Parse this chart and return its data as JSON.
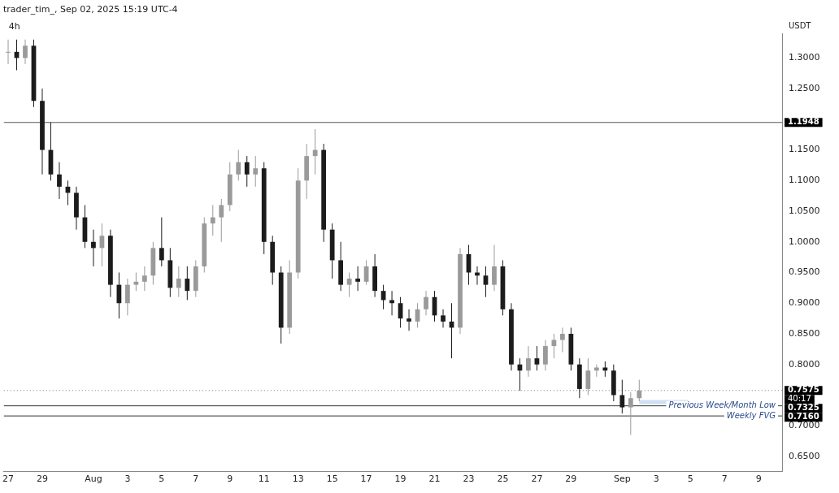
{
  "chart_data": {
    "type": "candlestick",
    "title": "trader_tim_, Sep 02, 2025 15:19 UTC-4",
    "ylabel": "USDT",
    "x": [
      "2025-07-27T00:00",
      "2025-07-27T12:00",
      "2025-07-28T00:00",
      "2025-07-28T12:00",
      "2025-07-29T00:00",
      "2025-07-29T12:00",
      "2025-07-30T00:00",
      "2025-07-30T12:00",
      "2025-07-31T00:00",
      "2025-07-31T12:00",
      "2025-08-01T00:00",
      "2025-08-01T12:00",
      "2025-08-02T00:00",
      "2025-08-02T12:00",
      "2025-08-03T00:00",
      "2025-08-03T12:00",
      "2025-08-04T00:00",
      "2025-08-04T12:00",
      "2025-08-05T00:00",
      "2025-08-05T12:00",
      "2025-08-06T00:00",
      "2025-08-06T12:00",
      "2025-08-07T00:00",
      "2025-08-07T12:00",
      "2025-08-08T00:00",
      "2025-08-08T12:00",
      "2025-08-09T00:00",
      "2025-08-09T12:00",
      "2025-08-10T00:00",
      "2025-08-10T12:00",
      "2025-08-11T00:00",
      "2025-08-11T12:00",
      "2025-08-12T00:00",
      "2025-08-12T12:00",
      "2025-08-13T00:00",
      "2025-08-13T12:00",
      "2025-08-14T00:00",
      "2025-08-14T12:00",
      "2025-08-15T00:00",
      "2025-08-15T12:00",
      "2025-08-16T00:00",
      "2025-08-16T12:00",
      "2025-08-17T00:00",
      "2025-08-17T12:00",
      "2025-08-18T00:00",
      "2025-08-18T12:00",
      "2025-08-19T00:00",
      "2025-08-19T12:00",
      "2025-08-20T00:00",
      "2025-08-20T12:00",
      "2025-08-21T00:00",
      "2025-08-21T12:00",
      "2025-08-22T00:00",
      "2025-08-22T12:00",
      "2025-08-23T00:00",
      "2025-08-23T12:00",
      "2025-08-24T00:00",
      "2025-08-24T12:00",
      "2025-08-25T00:00",
      "2025-08-25T12:00",
      "2025-08-26T00:00",
      "2025-08-26T12:00",
      "2025-08-27T00:00",
      "2025-08-27T12:00",
      "2025-08-28T00:00",
      "2025-08-28T12:00",
      "2025-08-29T00:00",
      "2025-08-29T12:00",
      "2025-08-30T00:00",
      "2025-08-30T12:00",
      "2025-08-31T00:00",
      "2025-08-31T12:00",
      "2025-09-01T00:00",
      "2025-09-01T12:00",
      "2025-09-02T00:00"
    ],
    "ohlc": [
      [
        1.31,
        1.33,
        1.29,
        1.31
      ],
      [
        1.31,
        1.33,
        1.28,
        1.3
      ],
      [
        1.3,
        1.33,
        1.29,
        1.32
      ],
      [
        1.32,
        1.33,
        1.22,
        1.23
      ],
      [
        1.23,
        1.25,
        1.11,
        1.15
      ],
      [
        1.15,
        1.1948,
        1.1,
        1.11
      ],
      [
        1.11,
        1.13,
        1.07,
        1.09
      ],
      [
        1.09,
        1.1,
        1.06,
        1.08
      ],
      [
        1.08,
        1.09,
        1.02,
        1.04
      ],
      [
        1.04,
        1.06,
        0.99,
        1.0
      ],
      [
        1.0,
        1.02,
        0.96,
        0.99
      ],
      [
        0.99,
        1.03,
        0.96,
        1.01
      ],
      [
        1.01,
        1.02,
        0.91,
        0.93
      ],
      [
        0.93,
        0.95,
        0.875,
        0.9
      ],
      [
        0.9,
        0.94,
        0.88,
        0.93
      ],
      [
        0.93,
        0.95,
        0.92,
        0.935
      ],
      [
        0.935,
        0.96,
        0.92,
        0.945
      ],
      [
        0.945,
        1.0,
        0.93,
        0.99
      ],
      [
        0.99,
        1.04,
        0.96,
        0.97
      ],
      [
        0.97,
        0.99,
        0.91,
        0.925
      ],
      [
        0.925,
        0.96,
        0.91,
        0.94
      ],
      [
        0.94,
        0.96,
        0.905,
        0.92
      ],
      [
        0.92,
        0.97,
        0.91,
        0.96
      ],
      [
        0.96,
        1.04,
        0.95,
        1.03
      ],
      [
        1.03,
        1.06,
        1.01,
        1.04
      ],
      [
        1.04,
        1.07,
        1.0,
        1.06
      ],
      [
        1.06,
        1.13,
        1.05,
        1.11
      ],
      [
        1.11,
        1.15,
        1.1,
        1.13
      ],
      [
        1.13,
        1.14,
        1.09,
        1.11
      ],
      [
        1.11,
        1.14,
        1.09,
        1.12
      ],
      [
        1.12,
        1.13,
        0.98,
        1.0
      ],
      [
        1.0,
        1.01,
        0.93,
        0.95
      ],
      [
        0.95,
        0.96,
        0.834,
        0.86
      ],
      [
        0.86,
        0.97,
        0.85,
        0.95
      ],
      [
        0.95,
        1.12,
        0.94,
        1.1
      ],
      [
        1.1,
        1.16,
        1.07,
        1.14
      ],
      [
        1.14,
        1.184,
        1.11,
        1.15
      ],
      [
        1.15,
        1.16,
        1.0,
        1.02
      ],
      [
        1.02,
        1.03,
        0.94,
        0.97
      ],
      [
        0.97,
        1.0,
        0.92,
        0.93
      ],
      [
        0.93,
        0.95,
        0.91,
        0.94
      ],
      [
        0.94,
        0.96,
        0.92,
        0.935
      ],
      [
        0.935,
        0.97,
        0.93,
        0.96
      ],
      [
        0.96,
        0.98,
        0.91,
        0.92
      ],
      [
        0.92,
        0.93,
        0.89,
        0.905
      ],
      [
        0.905,
        0.92,
        0.88,
        0.9
      ],
      [
        0.9,
        0.91,
        0.86,
        0.875
      ],
      [
        0.875,
        0.89,
        0.855,
        0.87
      ],
      [
        0.87,
        0.9,
        0.86,
        0.89
      ],
      [
        0.89,
        0.92,
        0.88,
        0.91
      ],
      [
        0.91,
        0.92,
        0.87,
        0.88
      ],
      [
        0.88,
        0.89,
        0.86,
        0.87
      ],
      [
        0.87,
        0.9,
        0.81,
        0.86
      ],
      [
        0.86,
        0.99,
        0.85,
        0.98
      ],
      [
        0.98,
        0.995,
        0.93,
        0.95
      ],
      [
        0.95,
        0.96,
        0.93,
        0.945
      ],
      [
        0.945,
        0.96,
        0.91,
        0.93
      ],
      [
        0.93,
        0.995,
        0.92,
        0.96
      ],
      [
        0.96,
        0.97,
        0.88,
        0.89
      ],
      [
        0.89,
        0.9,
        0.79,
        0.8
      ],
      [
        0.8,
        0.81,
        0.757,
        0.79
      ],
      [
        0.79,
        0.83,
        0.78,
        0.81
      ],
      [
        0.81,
        0.83,
        0.79,
        0.8
      ],
      [
        0.8,
        0.84,
        0.79,
        0.83
      ],
      [
        0.83,
        0.85,
        0.81,
        0.84
      ],
      [
        0.84,
        0.86,
        0.82,
        0.85
      ],
      [
        0.85,
        0.86,
        0.79,
        0.8
      ],
      [
        0.8,
        0.81,
        0.745,
        0.76
      ],
      [
        0.76,
        0.81,
        0.75,
        0.79
      ],
      [
        0.79,
        0.8,
        0.78,
        0.795
      ],
      [
        0.795,
        0.805,
        0.78,
        0.79
      ],
      [
        0.79,
        0.8,
        0.74,
        0.75
      ],
      [
        0.75,
        0.775,
        0.72,
        0.73
      ],
      [
        0.73,
        0.755,
        0.685,
        0.745
      ],
      [
        0.745,
        0.775,
        0.74,
        0.7575
      ]
    ],
    "colors": [
      "#9a9a9a",
      "#1c1c1c",
      "#9a9a9a",
      "#1c1c1c",
      "#1c1c1c",
      "#1c1c1c",
      "#1c1c1c",
      "#1c1c1c",
      "#1c1c1c",
      "#1c1c1c",
      "#1c1c1c",
      "#9a9a9a",
      "#1c1c1c",
      "#1c1c1c",
      "#9a9a9a",
      "#9a9a9a",
      "#9a9a9a",
      "#9a9a9a",
      "#1c1c1c",
      "#1c1c1c",
      "#9a9a9a",
      "#1c1c1c",
      "#9a9a9a",
      "#9a9a9a",
      "#9a9a9a",
      "#9a9a9a",
      "#9a9a9a",
      "#9a9a9a",
      "#1c1c1c",
      "#9a9a9a",
      "#1c1c1c",
      "#1c1c1c",
      "#1c1c1c",
      "#9a9a9a",
      "#9a9a9a",
      "#9a9a9a",
      "#9a9a9a",
      "#1c1c1c",
      "#1c1c1c",
      "#1c1c1c",
      "#9a9a9a",
      "#1c1c1c",
      "#9a9a9a",
      "#1c1c1c",
      "#1c1c1c",
      "#1c1c1c",
      "#1c1c1c",
      "#1c1c1c",
      "#9a9a9a",
      "#9a9a9a",
      "#1c1c1c",
      "#1c1c1c",
      "#1c1c1c",
      "#9a9a9a",
      "#1c1c1c",
      "#1c1c1c",
      "#1c1c1c",
      "#9a9a9a",
      "#1c1c1c",
      "#1c1c1c",
      "#1c1c1c",
      "#9a9a9a",
      "#1c1c1c",
      "#9a9a9a",
      "#9a9a9a",
      "#9a9a9a",
      "#1c1c1c",
      "#1c1c1c",
      "#9a9a9a",
      "#9a9a9a",
      "#1c1c1c",
      "#1c1c1c",
      "#1c1c1c",
      "#9a9a9a",
      "#9a9a9a"
    ],
    "xlim": [
      "2025-07-26T18:00",
      "2025-09-10T09:00"
    ],
    "xticks": [
      {
        "value": "2025-07-27",
        "label": "27"
      },
      {
        "value": "2025-07-29",
        "label": "29"
      },
      {
        "value": "2025-08-01",
        "label": "Aug"
      },
      {
        "value": "2025-08-03",
        "label": "3"
      },
      {
        "value": "2025-08-05",
        "label": "5"
      },
      {
        "value": "2025-08-07",
        "label": "7"
      },
      {
        "value": "2025-08-09",
        "label": "9"
      },
      {
        "value": "2025-08-11",
        "label": "11"
      },
      {
        "value": "2025-08-13",
        "label": "13"
      },
      {
        "value": "2025-08-15",
        "label": "15"
      },
      {
        "value": "2025-08-17",
        "label": "17"
      },
      {
        "value": "2025-08-19",
        "label": "19"
      },
      {
        "value": "2025-08-21",
        "label": "21"
      },
      {
        "value": "2025-08-23",
        "label": "23"
      },
      {
        "value": "2025-08-25",
        "label": "25"
      },
      {
        "value": "2025-08-27",
        "label": "27"
      },
      {
        "value": "2025-08-29",
        "label": "29"
      },
      {
        "value": "2025-09-01",
        "label": "Sep"
      },
      {
        "value": "2025-09-03",
        "label": "3"
      },
      {
        "value": "2025-09-05",
        "label": "5"
      },
      {
        "value": "2025-09-07",
        "label": "7"
      },
      {
        "value": "2025-09-09",
        "label": "9"
      }
    ],
    "ylim": [
      0.625,
      1.34
    ],
    "yticks": [
      {
        "value": 0.65,
        "label": "0.6500"
      },
      {
        "value": 0.7,
        "label": "0.7000"
      },
      {
        "value": 0.8,
        "label": "0.8000"
      },
      {
        "value": 0.85,
        "label": "0.8500"
      },
      {
        "value": 0.9,
        "label": "0.9000"
      },
      {
        "value": 0.95,
        "label": "0.9500"
      },
      {
        "value": 1.0,
        "label": "1.0000"
      },
      {
        "value": 1.05,
        "label": "1.0500"
      },
      {
        "value": 1.1,
        "label": "1.1000"
      },
      {
        "value": 1.15,
        "label": "1.1500"
      },
      {
        "value": 1.25,
        "label": "1.2500"
      },
      {
        "value": 1.3,
        "label": "1.3000"
      }
    ],
    "ref_lines": [
      {
        "axis": "y",
        "value": 1.1948,
        "label": "1.1948",
        "color": "#555555",
        "line_style": "solid"
      },
      {
        "axis": "y",
        "value": 0.7575,
        "label": "0.7575",
        "color": "#777777",
        "line_style": "dotted"
      },
      {
        "axis": "y",
        "value": 0.7325,
        "label": "0.7325",
        "color": "#333333",
        "line_style": "solid"
      },
      {
        "axis": "y",
        "value": 0.716,
        "label": "0.7160",
        "color": "#333333",
        "line_style": "solid"
      }
    ],
    "bands": [
      {
        "axis": "y",
        "from": 0.735,
        "to": 0.742,
        "color": "#cfe0f5"
      }
    ],
    "annotations": [
      "4h",
      "40:17",
      {
        "text": "Previous Week/Month Low",
        "x": "2025-09-10T09:00",
        "y": 0.7325
      },
      {
        "text": "Weekly FVG",
        "x": "2025-09-10T09:00",
        "y": 0.716
      }
    ],
    "grid": false,
    "legend": false
  }
}
